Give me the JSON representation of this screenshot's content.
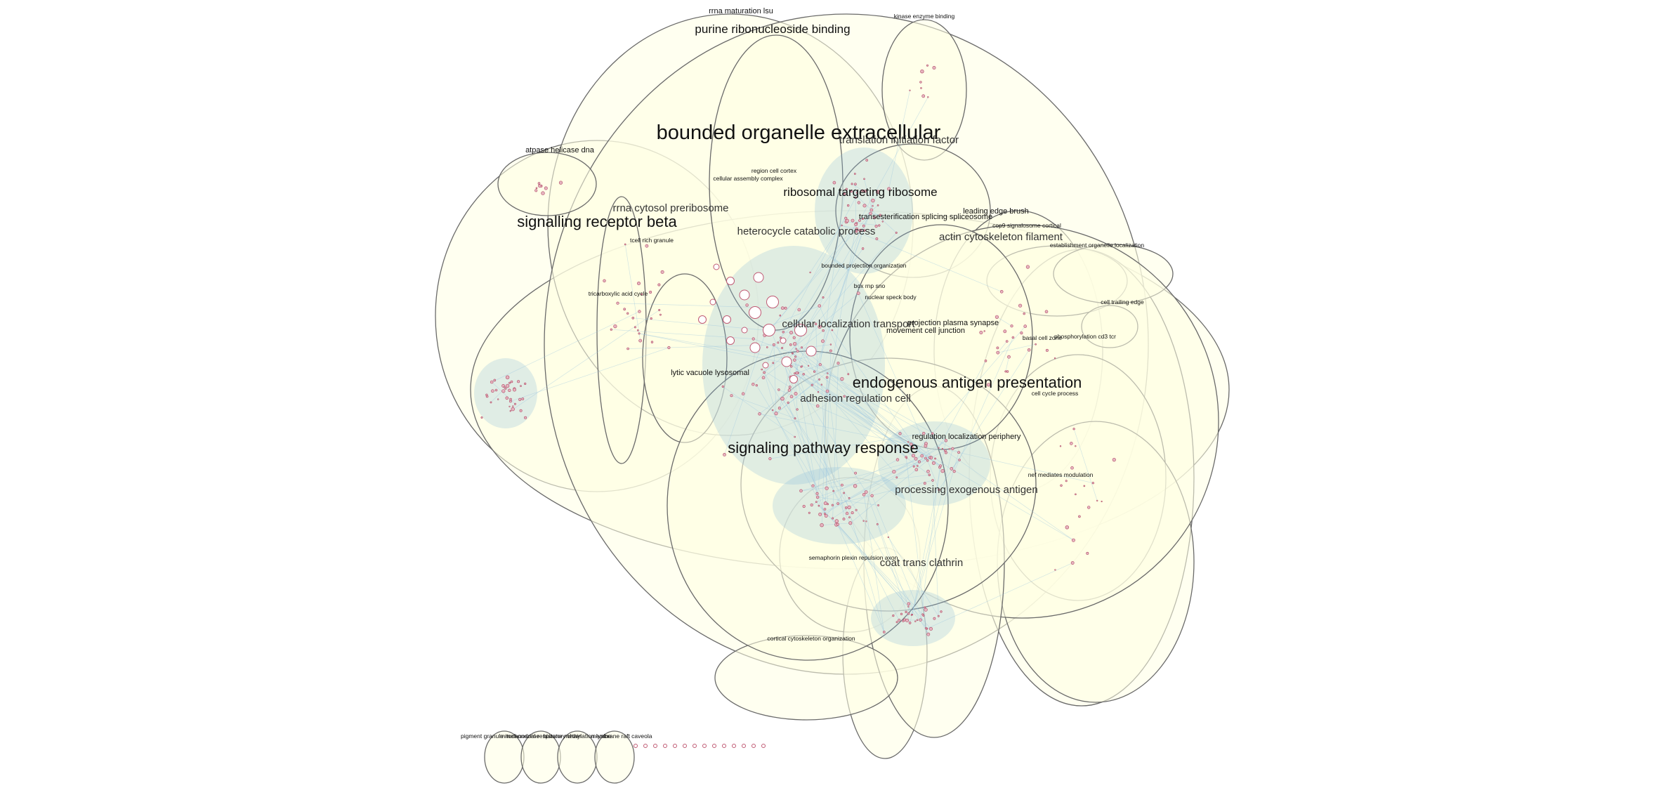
{
  "diagram": {
    "clusters": [
      {
        "id": "c1",
        "label": "purine ribonucleoside binding"
      },
      {
        "id": "c2",
        "label": "rrna maturation lsu"
      },
      {
        "id": "c3",
        "label": "kinase enzyme binding"
      },
      {
        "id": "c4",
        "label": "atpase helicase dna"
      },
      {
        "id": "c5",
        "label": "signalling receptor beta"
      },
      {
        "id": "c6",
        "label": "leading edge brush"
      },
      {
        "id": "c7",
        "label": "cop9 signalosome cortical"
      },
      {
        "id": "c8",
        "label": "establishment organelle localization"
      },
      {
        "id": "c9",
        "label": "cell trailing edge"
      },
      {
        "id": "c10",
        "label": "phosphorylation cd3 tcr"
      },
      {
        "id": "c11",
        "label": "cortical cytoskeleton organization"
      },
      {
        "id": "c12",
        "label": "tricarboxylic acid cycle"
      },
      {
        "id": "c13",
        "label": "coat trans clathrin"
      },
      {
        "id": "c14",
        "label": "nef mediates modulation"
      },
      {
        "id": "c15",
        "label": "lytic vacuole lysosomal"
      }
    ],
    "labels": [
      {
        "text": "rrna maturation lsu",
        "size": "s"
      },
      {
        "text": "purine ribonucleoside binding",
        "size": "m"
      },
      {
        "text": "kinase enzyme binding",
        "size": "xs"
      },
      {
        "text": "bounded organelle extracellular",
        "size": "xl"
      },
      {
        "text": "translation initiation factor",
        "size": "m2"
      },
      {
        "text": "atpase helicase dna",
        "size": "s"
      },
      {
        "text": "region cell cortex",
        "size": "xs"
      },
      {
        "text": "cellular assembly complex",
        "size": "xs"
      },
      {
        "text": "ribosomal targeting ribosome",
        "size": "m"
      },
      {
        "text": "rrna cytosol preribosome",
        "size": "m2"
      },
      {
        "text": "signalling receptor beta",
        "size": "l"
      },
      {
        "text": "leading edge brush",
        "size": "s"
      },
      {
        "text": "transesterification splicing spliceosome",
        "size": "s"
      },
      {
        "text": "heterocycle catabolic process",
        "size": "m2"
      },
      {
        "text": "cop9 signalosome cortical",
        "size": "xs"
      },
      {
        "text": "actin cytoskeleton filament",
        "size": "m2"
      },
      {
        "text": "establishment organelle localization",
        "size": "xs"
      },
      {
        "text": "tcell rich granule",
        "size": "xs"
      },
      {
        "text": "bounded projection organization",
        "size": "xs"
      },
      {
        "text": "box rnp sno",
        "size": "xs"
      },
      {
        "text": "nuclear speck body",
        "size": "xs"
      },
      {
        "text": "tricarboxylic acid cycle",
        "size": "xs"
      },
      {
        "text": "cell trailing edge",
        "size": "xs"
      },
      {
        "text": "cellular localization transport",
        "size": "m2"
      },
      {
        "text": "projection plasma synapse",
        "size": "s"
      },
      {
        "text": "movement cell junction",
        "size": "s"
      },
      {
        "text": "phosphorylation cd3 tcr",
        "size": "xs"
      },
      {
        "text": "basal cell zone",
        "size": "xs"
      },
      {
        "text": "lytic vacuole lysosomal",
        "size": "s"
      },
      {
        "text": "endogenous antigen presentation",
        "size": "l"
      },
      {
        "text": "cell cycle process",
        "size": "xs"
      },
      {
        "text": "adhesion regulation cell",
        "size": "m2"
      },
      {
        "text": "regulation localization periphery",
        "size": "s"
      },
      {
        "text": "signaling pathway response",
        "size": "l"
      },
      {
        "text": "nef mediates modulation",
        "size": "xs"
      },
      {
        "text": "processing exogenous antigen",
        "size": "m2"
      },
      {
        "text": "semaphorin plexin repulsion axon",
        "size": "xs"
      },
      {
        "text": "coat trans clathrin",
        "size": "m2"
      },
      {
        "text": "cortical cytoskeleton organization",
        "size": "xs"
      },
      {
        "text": "pigment granule melanosome",
        "size": "xs"
      },
      {
        "text": "mitochondrial respiratory chain",
        "size": "xs"
      },
      {
        "text": "histone methylation lysine",
        "size": "xs"
      },
      {
        "text": "membrane raft caveola",
        "size": "xs"
      }
    ]
  }
}
